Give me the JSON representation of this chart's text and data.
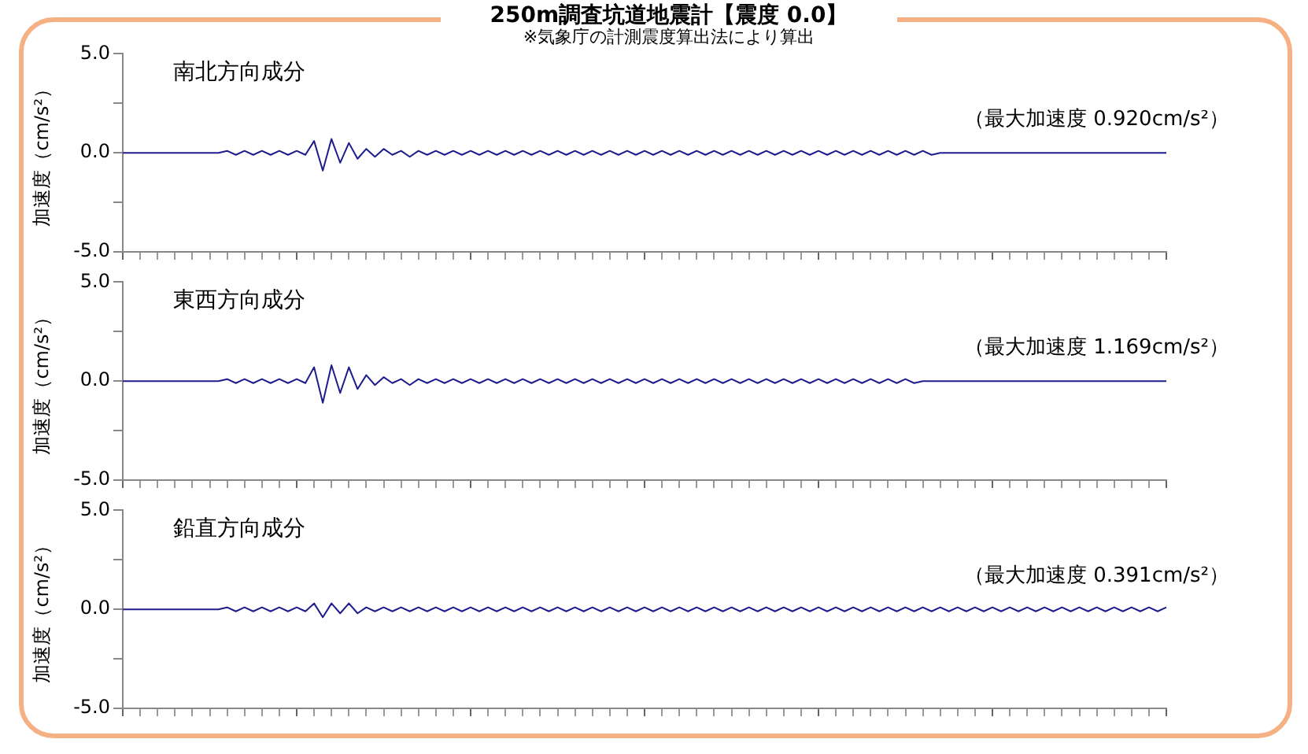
{
  "chart_data": [
    {
      "type": "line",
      "title": "250m調査坑道地震計【震度 0.0】",
      "subtitle": "※気象庁の計測震度算出法により算出",
      "ylabel": "加速度（cm/s²）",
      "annotations": [
        "南北方向成分",
        "（最大加速度 0.920cm/s²）"
      ],
      "categories": [
        null,
        null,
        null,
        null,
        null,
        null,
        null,
        null,
        null,
        null,
        null,
        null,
        null,
        null,
        null,
        null,
        null,
        null,
        null,
        null,
        null,
        null,
        null,
        null,
        null,
        null,
        null,
        null,
        null,
        null,
        null,
        null,
        null,
        null,
        null,
        null,
        null,
        null,
        null,
        null,
        null,
        null,
        null,
        null,
        null,
        null,
        null,
        null,
        null,
        null,
        null,
        null,
        null,
        null,
        null,
        null,
        null,
        null,
        null,
        null,
        null,
        null,
        null,
        null,
        null,
        null,
        null,
        null,
        null,
        null,
        null,
        null,
        null,
        null,
        null,
        null,
        null,
        null,
        null,
        null,
        null,
        null,
        null,
        null,
        null,
        null,
        null,
        null,
        null,
        null,
        null,
        null,
        null,
        null,
        null,
        null,
        null,
        null,
        null,
        null,
        null,
        null,
        null,
        null,
        null,
        null,
        null,
        null,
        null,
        null,
        null,
        null,
        null,
        null,
        null,
        null,
        null,
        null,
        null,
        null,
        null
      ],
      "series": [
        {
          "color": "#1c1c8c",
          "values": [
            0,
            0,
            0,
            0,
            0,
            0,
            0,
            0,
            0,
            0,
            0,
            0,
            0.1,
            -0.1,
            0.1,
            -0.1,
            0.1,
            -0.1,
            0.1,
            -0.1,
            0.1,
            -0.1,
            0.6,
            -0.9,
            0.7,
            -0.5,
            0.5,
            -0.3,
            0.2,
            -0.2,
            0.2,
            -0.1,
            0.1,
            -0.2,
            0.1,
            -0.1,
            0.1,
            -0.1,
            0.1,
            -0.1,
            0.1,
            -0.1,
            0.1,
            -0.1,
            0.1,
            -0.1,
            0.1,
            -0.1,
            0.1,
            -0.1,
            0.1,
            -0.1,
            0.1,
            -0.1,
            0.1,
            -0.1,
            0.1,
            -0.1,
            0.1,
            -0.1,
            0.1,
            -0.1,
            0.1,
            -0.1,
            0.1,
            -0.1,
            0.1,
            -0.1,
            0.1,
            -0.1,
            0.1,
            -0.1,
            0.1,
            -0.1,
            0.1,
            -0.1,
            0.1,
            -0.1,
            0.1,
            -0.1,
            0.1,
            -0.1,
            0.1,
            -0.1,
            0.1,
            -0.1,
            0.1,
            -0.1,
            0.1,
            -0.1,
            0.1,
            -0.1,
            0.1,
            -0.1,
            0,
            0,
            0,
            0,
            0,
            0,
            0,
            0,
            0,
            0,
            0,
            0,
            0,
            0,
            0,
            0,
            0,
            0,
            0,
            0,
            0,
            0,
            0,
            0,
            0,
            0,
            0
          ]
        }
      ],
      "ylim": [
        -5,
        5
      ],
      "yticks": [
        {
          "value": -5,
          "label": "-5.0"
        },
        {
          "value": -2.5,
          "label": null
        },
        {
          "value": 0,
          "label": "0.0"
        },
        {
          "value": 2.5,
          "label": null
        },
        {
          "value": 5,
          "label": "5.0"
        }
      ],
      "tick_labels": "y"
    },
    {
      "type": "line",
      "ylabel": "加速度（cm/s²）",
      "annotations": [
        "東西方向成分",
        "（最大加速度 1.169cm/s²）"
      ],
      "categories": [
        null,
        null,
        null,
        null,
        null,
        null,
        null,
        null,
        null,
        null,
        null,
        null,
        null,
        null,
        null,
        null,
        null,
        null,
        null,
        null,
        null,
        null,
        null,
        null,
        null,
        null,
        null,
        null,
        null,
        null,
        null,
        null,
        null,
        null,
        null,
        null,
        null,
        null,
        null,
        null,
        null,
        null,
        null,
        null,
        null,
        null,
        null,
        null,
        null,
        null,
        null,
        null,
        null,
        null,
        null,
        null,
        null,
        null,
        null,
        null,
        null,
        null,
        null,
        null,
        null,
        null,
        null,
        null,
        null,
        null,
        null,
        null,
        null,
        null,
        null,
        null,
        null,
        null,
        null,
        null,
        null,
        null,
        null,
        null,
        null,
        null,
        null,
        null,
        null,
        null,
        null,
        null,
        null,
        null,
        null,
        null,
        null,
        null,
        null,
        null,
        null,
        null,
        null,
        null,
        null,
        null,
        null,
        null,
        null,
        null,
        null,
        null,
        null,
        null,
        null,
        null,
        null,
        null,
        null,
        null,
        null
      ],
      "series": [
        {
          "color": "#1c1c8c",
          "values": [
            0,
            0,
            0,
            0,
            0,
            0,
            0,
            0,
            0,
            0,
            0,
            0,
            0.1,
            -0.1,
            0.1,
            -0.1,
            0.1,
            -0.1,
            0.1,
            -0.1,
            0.1,
            -0.1,
            0.7,
            -1.1,
            0.8,
            -0.6,
            0.7,
            -0.4,
            0.3,
            -0.2,
            0.2,
            -0.1,
            0.1,
            -0.2,
            0.1,
            -0.1,
            0.1,
            -0.1,
            0.1,
            -0.1,
            0.1,
            -0.1,
            0.1,
            -0.1,
            0.1,
            -0.1,
            0.1,
            -0.1,
            0.1,
            -0.1,
            0.1,
            -0.1,
            0.1,
            -0.1,
            0.1,
            -0.1,
            0.1,
            -0.1,
            0.1,
            -0.1,
            0.1,
            -0.1,
            0.1,
            -0.1,
            0.1,
            -0.1,
            0.1,
            -0.1,
            0.1,
            -0.1,
            0.1,
            -0.1,
            0.1,
            -0.1,
            0.1,
            -0.1,
            0.1,
            -0.1,
            0.1,
            -0.1,
            0.1,
            -0.1,
            0.1,
            -0.1,
            0.1,
            -0.1,
            0.1,
            -0.1,
            0.1,
            -0.1,
            0.1,
            -0.1,
            0,
            0,
            0,
            0,
            0,
            0,
            0,
            0,
            0,
            0,
            0,
            0,
            0,
            0,
            0,
            0,
            0,
            0,
            0,
            0,
            0,
            0,
            0,
            0,
            0,
            0,
            0,
            0,
            0
          ]
        }
      ],
      "ylim": [
        -5,
        5
      ],
      "yticks": [
        {
          "value": -5,
          "label": "-5.0"
        },
        {
          "value": -2.5,
          "label": null
        },
        {
          "value": 0,
          "label": "0.0"
        },
        {
          "value": 2.5,
          "label": null
        },
        {
          "value": 5,
          "label": "5.0"
        }
      ],
      "tick_labels": "y"
    },
    {
      "type": "line",
      "ylabel": "加速度（cm/s²）",
      "annotations": [
        "鉛直方向成分",
        "（最大加速度 0.391cm/s²）"
      ],
      "categories": [
        null,
        null,
        null,
        null,
        null,
        null,
        null,
        null,
        null,
        null,
        null,
        null,
        null,
        null,
        null,
        null,
        null,
        null,
        null,
        null,
        null,
        null,
        null,
        null,
        null,
        null,
        null,
        null,
        null,
        null,
        null,
        null,
        null,
        null,
        null,
        null,
        null,
        null,
        null,
        null,
        null,
        null,
        null,
        null,
        null,
        null,
        null,
        null,
        null,
        null,
        null,
        null,
        null,
        null,
        null,
        null,
        null,
        null,
        null,
        null,
        null,
        null,
        null,
        null,
        null,
        null,
        null,
        null,
        null,
        null,
        null,
        null,
        null,
        null,
        null,
        null,
        null,
        null,
        null,
        null,
        null,
        null,
        null,
        null,
        null,
        null,
        null,
        null,
        null,
        null,
        null,
        null,
        null,
        null,
        null,
        null,
        null,
        null,
        null,
        null,
        null,
        null,
        null,
        null,
        null,
        null,
        null,
        null,
        null,
        null,
        null,
        null,
        null,
        null,
        null,
        null,
        null,
        null,
        null,
        null,
        null
      ],
      "series": [
        {
          "color": "#1c1c8c",
          "values": [
            0,
            0,
            0,
            0,
            0,
            0,
            0,
            0,
            0,
            0,
            0,
            0,
            0.1,
            -0.1,
            0.1,
            -0.1,
            0.1,
            -0.1,
            0.1,
            -0.1,
            0.1,
            -0.1,
            0.3,
            -0.4,
            0.3,
            -0.2,
            0.3,
            -0.2,
            0.1,
            -0.1,
            0.1,
            -0.1,
            0.1,
            -0.1,
            0.1,
            -0.1,
            0.1,
            -0.1,
            0.1,
            -0.1,
            0.1,
            -0.1,
            0.1,
            -0.1,
            0.1,
            -0.1,
            0.1,
            -0.1,
            0.1,
            -0.1,
            0.1,
            -0.1,
            0.1,
            -0.1,
            0.1,
            -0.1,
            0.1,
            -0.1,
            0.1,
            -0.1,
            0.1,
            -0.1,
            0.1,
            -0.1,
            0.1,
            -0.1,
            0.1,
            -0.1,
            0.1,
            -0.1,
            0.1,
            -0.1,
            0.1,
            -0.1,
            0.1,
            -0.1,
            0.1,
            -0.1,
            0.1,
            -0.1,
            0.1,
            -0.1,
            0.1,
            -0.1,
            0.1,
            -0.1,
            0.1,
            -0.1,
            0.1,
            -0.1,
            0.1,
            -0.1,
            0.1,
            -0.1,
            0.1,
            -0.1,
            0.1,
            -0.1,
            0.1,
            -0.1,
            0.1,
            -0.1,
            0.1,
            -0.1,
            0.1,
            -0.1,
            0.1,
            -0.1,
            0.1,
            -0.1,
            0.1,
            -0.1,
            0.1,
            -0.1,
            0.1,
            -0.1,
            0.1,
            -0.1,
            0.1,
            -0.1,
            0.1
          ]
        }
      ],
      "ylim": [
        -5,
        5
      ],
      "yticks": [
        {
          "value": -5,
          "label": "-5.0"
        },
        {
          "value": -2.5,
          "label": null
        },
        {
          "value": 0,
          "label": "0.0"
        },
        {
          "value": 2.5,
          "label": null
        },
        {
          "value": 5,
          "label": "5.0"
        }
      ],
      "tick_labels": "y"
    }
  ]
}
